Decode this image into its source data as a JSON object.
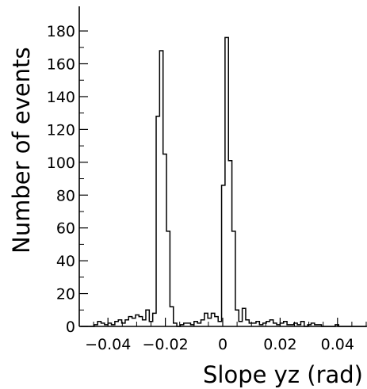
{
  "chart_data": {
    "type": "histogram",
    "title": "",
    "xlabel": "Slope yz (rad)",
    "ylabel": "Number of events",
    "xlim": [
      -0.05,
      0.05
    ],
    "ylim": [
      0,
      195
    ],
    "bin_width": 0.0012,
    "x_start": -0.0496,
    "x_ticks": [
      -0.04,
      -0.02,
      0,
      0.02,
      0.04
    ],
    "x_tick_labels": [
      "−0.04",
      "−0.02",
      "0",
      "0.02",
      "0.04"
    ],
    "y_ticks": [
      0,
      20,
      40,
      60,
      80,
      100,
      120,
      140,
      160,
      180
    ],
    "y_tick_labels": [
      "0",
      "20",
      "40",
      "60",
      "80",
      "100",
      "120",
      "140",
      "160",
      "180"
    ],
    "counts": [
      0,
      0,
      0,
      0,
      1,
      3,
      2,
      1,
      2,
      1,
      3,
      4,
      2,
      4,
      6,
      5,
      7,
      6,
      4,
      10,
      3,
      8,
      128,
      168,
      105,
      58,
      12,
      2,
      0,
      1,
      2,
      2,
      1,
      3,
      2,
      4,
      8,
      5,
      8,
      6,
      3,
      86,
      176,
      101,
      58,
      10,
      3,
      11,
      4,
      2,
      2,
      3,
      1,
      2,
      3,
      4,
      2,
      1,
      2,
      3,
      1,
      1,
      2,
      1,
      3,
      0,
      1,
      2,
      1,
      1,
      0,
      0,
      0,
      0,
      1,
      0,
      0,
      0,
      0,
      0,
      0,
      0,
      0,
      0
    ]
  }
}
